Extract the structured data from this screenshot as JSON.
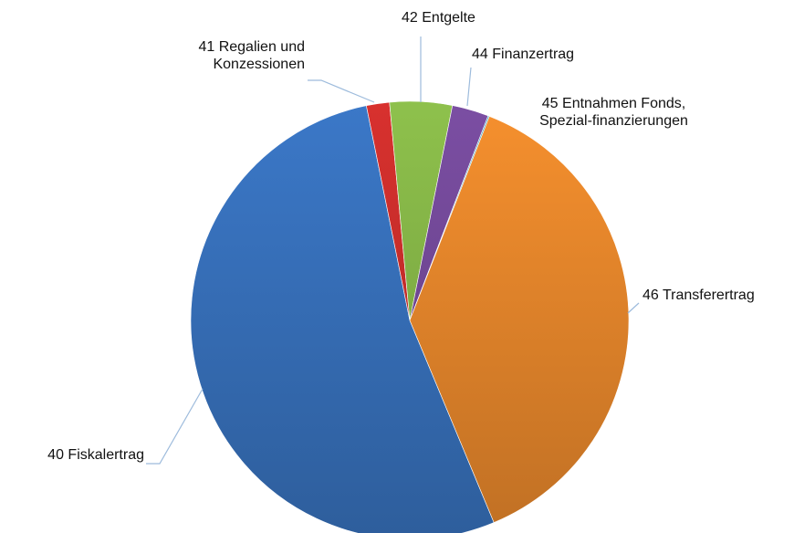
{
  "chart_data": {
    "type": "pie",
    "categories": [
      "40 Fiskalertrag",
      "41 Regalien und\nKonzessionen",
      "42 Entgelte",
      "44 Finanzertrag",
      "45 Entnahmen Fonds,\nSpezial-finanzierungen",
      "46 Transferertrag"
    ],
    "values": [
      53.1,
      1.7,
      4.6,
      2.7,
      0.1,
      37.8
    ],
    "colors": [
      "#3b78c8",
      "#d8312e",
      "#8ec14c",
      "#7b4ea3",
      "#4bacc6",
      "#f6902e"
    ]
  }
}
